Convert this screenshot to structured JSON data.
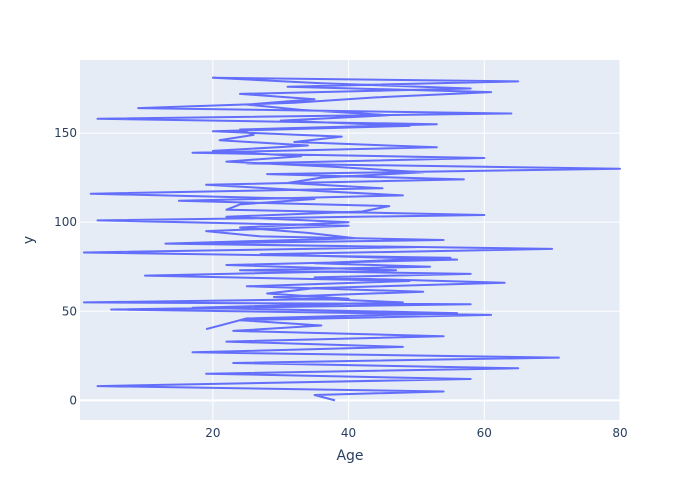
{
  "chart_data": {
    "type": "line",
    "title": "",
    "xlabel": "Age",
    "ylabel": "y",
    "xlim": [
      0.42,
      80
    ],
    "ylim": [
      -11,
      191
    ],
    "x_ticks": [
      "20",
      "40",
      "60",
      "80"
    ],
    "y_ticks": [
      "0",
      "50",
      "100",
      "150"
    ],
    "grid": true,
    "colors": {
      "plot_bg": "#e5ecf6",
      "grid": "#ffffff",
      "line": "#636efa",
      "text": "#2a3f5f"
    },
    "series": [
      {
        "name": "",
        "x": [
          38,
          35,
          54,
          3,
          58,
          19,
          65,
          23,
          71,
          17,
          48,
          22,
          54,
          23,
          36,
          24,
          61,
          5,
          58,
          1,
          40,
          28,
          35,
          63,
          35,
          58,
          24,
          52,
          35,
          55,
          1,
          50,
          14,
          54,
          27,
          19,
          40,
          3,
          60,
          22,
          24,
          35,
          2,
          45,
          31,
          36,
          51,
          38,
          22,
          33,
          20,
          34,
          21,
          26,
          24,
          53,
          3,
          64,
          9,
          32,
          44,
          61,
          31,
          65,
          20,
          36,
          58,
          24,
          35,
          25,
          33,
          46,
          30,
          49,
          20,
          39,
          32,
          53,
          17,
          60,
          25,
          80,
          28,
          57,
          19,
          33,
          48,
          15,
          46,
          42,
          22,
          40,
          24,
          34,
          41,
          13,
          70,
          27,
          56,
          22,
          47,
          10,
          49,
          25,
          51,
          29,
          48,
          17,
          56,
          25,
          22,
          19
        ],
        "y": [
          0,
          3,
          5,
          8,
          12,
          15,
          18,
          21,
          24,
          27,
          30,
          33,
          36,
          39,
          42,
          45,
          48,
          51,
          54,
          55,
          57,
          60,
          63,
          66,
          69,
          71,
          73,
          75,
          77,
          80,
          83,
          86,
          88,
          90,
          92,
          95,
          98,
          101,
          104,
          107,
          110,
          113,
          116,
          119,
          122,
          125,
          128,
          131,
          134,
          137,
          140,
          143,
          146,
          149,
          152,
          155,
          158,
          161,
          164,
          167,
          170,
          173,
          176,
          179,
          181,
          178,
          175,
          172,
          169,
          166,
          163,
          160,
          157,
          154,
          151,
          148,
          145,
          142,
          139,
          136,
          133,
          130,
          127,
          124,
          121,
          118,
          115,
          112,
          109,
          106,
          103,
          100,
          97,
          94,
          91,
          88,
          85,
          82,
          79,
          76,
          73,
          70,
          67,
          64,
          61,
          58,
          55,
          52,
          49,
          46,
          43,
          40
        ]
      }
    ]
  }
}
